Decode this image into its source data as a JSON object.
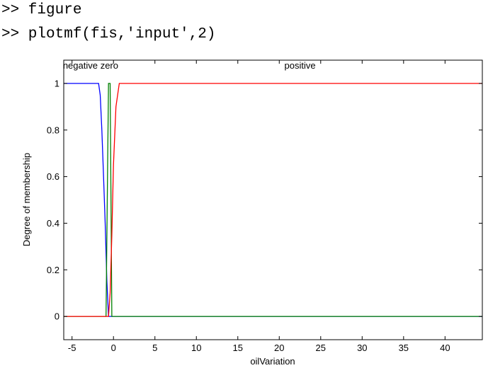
{
  "console": {
    "lines": [
      ">> figure",
      ">> plotmf(fis,'input',2)"
    ]
  },
  "chart_data": {
    "type": "line",
    "xlabel": "oilVariation",
    "ylabel": "Degree of membership",
    "xlim": [
      -6,
      44.5
    ],
    "ylim": [
      -0.1,
      1.1
    ],
    "xticks": [
      -5,
      0,
      5,
      10,
      15,
      20,
      25,
      30,
      35,
      40
    ],
    "xtick_labels": [
      "-5",
      "0",
      "5",
      "10",
      "15",
      "20",
      "25",
      "30",
      "35",
      "40"
    ],
    "yticks": [
      0,
      0.2,
      0.4,
      0.6,
      0.8,
      1
    ],
    "ytick_labels": [
      "0",
      "0.2",
      "0.4",
      "0.6",
      "0.8",
      "1"
    ],
    "grid": false,
    "series": [
      {
        "name": "negative",
        "color": "#0000ff",
        "x": [
          -6,
          -1.8,
          -1.6,
          -1.4,
          -1.2,
          -1.0,
          -0.8,
          -0.6,
          44.5
        ],
        "y": [
          1,
          1,
          0.95,
          0.8,
          0.6,
          0.4,
          0.15,
          0,
          0
        ]
      },
      {
        "name": "zero",
        "color": "#008000",
        "x": [
          -6,
          -0.9,
          -0.6,
          -0.4,
          -0.2,
          44.5
        ],
        "y": [
          0,
          0,
          1,
          1,
          0,
          0
        ]
      },
      {
        "name": "positive",
        "color": "#ff0000",
        "x": [
          -6,
          -0.6,
          -0.4,
          -0.2,
          0,
          0.3,
          0.7,
          44.5
        ],
        "y": [
          0,
          0,
          0.1,
          0.35,
          0.65,
          0.9,
          1,
          1
        ]
      }
    ],
    "mf_labels": [
      {
        "text": "negative",
        "x": -4.0
      },
      {
        "text": "zero",
        "x": -0.5
      },
      {
        "text": "positive",
        "x": 22.5
      }
    ]
  }
}
